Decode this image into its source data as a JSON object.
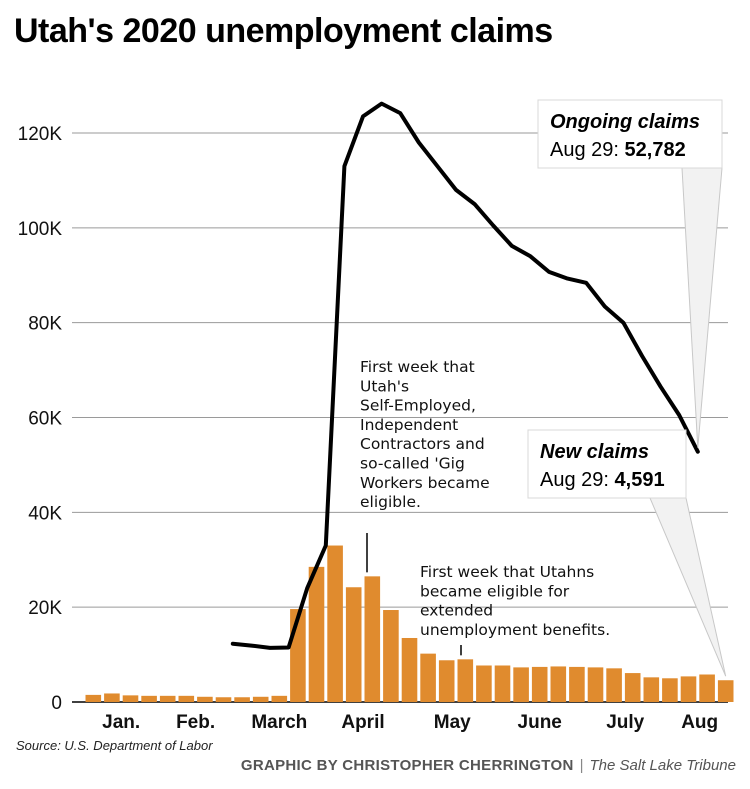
{
  "title": "Utah's 2020 unemployment claims",
  "source": "Source: U.S. Department of Labor",
  "credit": {
    "byline": "GRAPHIC BY CHRISTOPHER CHERRINGTON",
    "separator": "|",
    "publication": "The Salt Lake Tribune"
  },
  "colors": {
    "bars": "#e08b2e",
    "line": "#000000",
    "grid": "#9a9a9a"
  },
  "chart_data": {
    "type": "bar",
    "title": "Utah's 2020 unemployment claims",
    "ylim": [
      0,
      130000
    ],
    "yticks": [
      {
        "value": 0,
        "label": "0"
      },
      {
        "value": 20000,
        "label": "20K"
      },
      {
        "value": 40000,
        "label": "40K"
      },
      {
        "value": 60000,
        "label": "60K"
      },
      {
        "value": 80000,
        "label": "80K"
      },
      {
        "value": 100000,
        "label": "100K"
      },
      {
        "value": 120000,
        "label": "120K"
      }
    ],
    "grid": true,
    "month_labels": [
      {
        "label": "Jan.",
        "week": 1.5
      },
      {
        "label": "Feb.",
        "week": 5.5
      },
      {
        "label": "March",
        "week": 10
      },
      {
        "label": "April",
        "week": 14.5
      },
      {
        "label": "May",
        "week": 19.3
      },
      {
        "label": "June",
        "week": 24
      },
      {
        "label": "July",
        "week": 28.6
      },
      {
        "label": "Aug",
        "week": 32.6
      }
    ],
    "series": [
      {
        "name": "New claims",
        "type": "bar",
        "week_start": 0,
        "values": [
          1500,
          1800,
          1400,
          1300,
          1300,
          1300,
          1100,
          1000,
          1000,
          1100,
          1300,
          19600,
          28500,
          33000,
          24200,
          26500,
          19400,
          13500,
          10200,
          8800,
          9000,
          7700,
          7700,
          7300,
          7400,
          7500,
          7400,
          7300,
          7100,
          6100,
          5200,
          5000,
          5400,
          5800,
          4591
        ]
      },
      {
        "name": "Ongoing claims",
        "type": "line",
        "week_start": 7.5,
        "values": [
          12300,
          11900,
          11400,
          11500,
          24000,
          33000,
          113000,
          123500,
          126200,
          124200,
          118000,
          113000,
          108000,
          105000,
          100500,
          96200,
          94000,
          90700,
          89300,
          88400,
          83400,
          80000,
          73000,
          66500,
          60500,
          52782
        ]
      }
    ],
    "callouts": [
      {
        "series": "Ongoing claims",
        "title": "Ongoing claims",
        "date": "Aug 29:",
        "value": "52,782"
      },
      {
        "series": "New claims",
        "title": "New claims",
        "date": "Aug 29:",
        "value": "4,591"
      }
    ],
    "annotations": [
      {
        "week": 15,
        "value": 26500,
        "lines": [
          "First week that",
          "Utah's",
          "Self-Employed,",
          "Independent",
          "Contractors and",
          "so-called 'Gig",
          "Workers became",
          "eligible."
        ]
      },
      {
        "week": 20,
        "value": 9000,
        "lines": [
          "First week that Utahns",
          "became eligible for",
          "extended",
          "unemployment benefits."
        ]
      }
    ]
  }
}
